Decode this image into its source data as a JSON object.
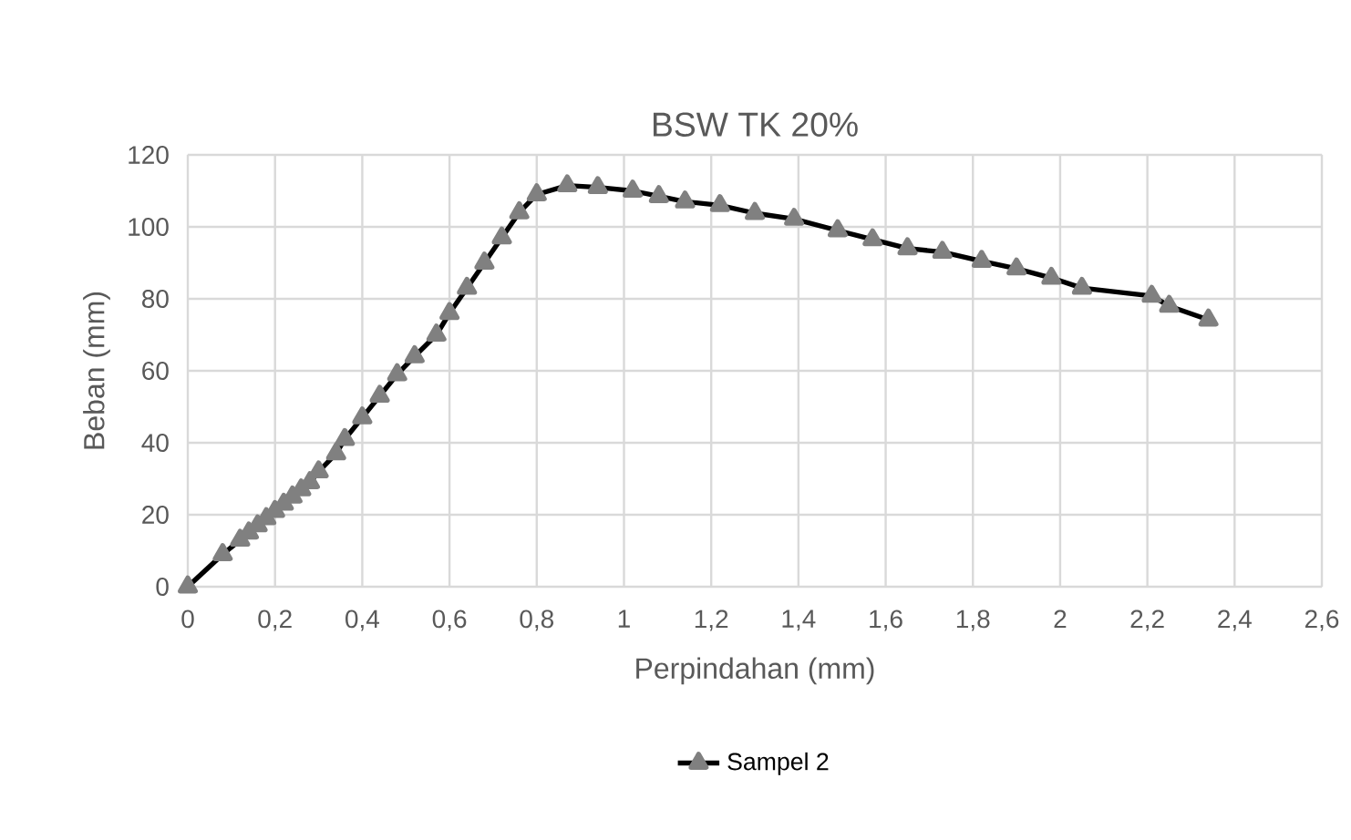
{
  "chart_data": {
    "type": "line",
    "title": "BSW TK 20%",
    "xlabel": "Perpindahan (mm)",
    "ylabel": "Beban (mm)",
    "xlim": [
      0,
      2.6
    ],
    "xticks": [
      0,
      {
        "value": 0.2,
        "label": "0,2"
      },
      {
        "value": 0.4,
        "label": "0,4"
      },
      {
        "value": 0.6,
        "label": "0,6"
      },
      {
        "value": 0.8,
        "label": "0,8"
      },
      1,
      {
        "value": 1.2,
        "label": "1,2"
      },
      {
        "value": 1.4,
        "label": "1,4"
      },
      {
        "value": 1.6,
        "label": "1,6"
      },
      {
        "value": 1.8,
        "label": "1,8"
      },
      2,
      {
        "value": 2.2,
        "label": "2,2"
      },
      {
        "value": 2.4,
        "label": "2,4"
      },
      {
        "value": 2.6,
        "label": "2,6"
      }
    ],
    "ylim": [
      0,
      120
    ],
    "yticks": [
      0,
      20,
      40,
      60,
      80,
      100,
      120
    ],
    "grid": true,
    "legend": "bottom",
    "marker": "triangle",
    "line_style": "solid",
    "series": [
      {
        "name": "Sampel 2",
        "color": "#000000",
        "x": [
          0,
          0.08,
          0.12,
          0.14,
          0.16,
          0.18,
          0.2,
          0.22,
          0.24,
          0.26,
          0.28,
          0.3,
          0.34,
          0.36,
          0.4,
          0.44,
          0.48,
          0.52,
          0.57,
          0.6,
          0.64,
          0.68,
          0.72,
          0.76,
          0.8,
          0.87,
          0.94,
          1.02,
          1.08,
          1.14,
          1.22,
          1.3,
          1.39,
          1.49,
          1.57,
          1.65,
          1.73,
          1.82,
          1.9,
          1.98,
          2.05,
          2.21,
          2.25,
          2.34
        ],
        "values": [
          0,
          9,
          13,
          15,
          17,
          19,
          21,
          23,
          25,
          27,
          29,
          32,
          37,
          41,
          47,
          53,
          59,
          64,
          70,
          76,
          83,
          90,
          97,
          104,
          109,
          111.5,
          111,
          110,
          108.5,
          107,
          106,
          103.8,
          102.2,
          99,
          96.5,
          94,
          93,
          90.5,
          88.4,
          85.8,
          83,
          80.8,
          78,
          74.2
        ]
      }
    ]
  }
}
